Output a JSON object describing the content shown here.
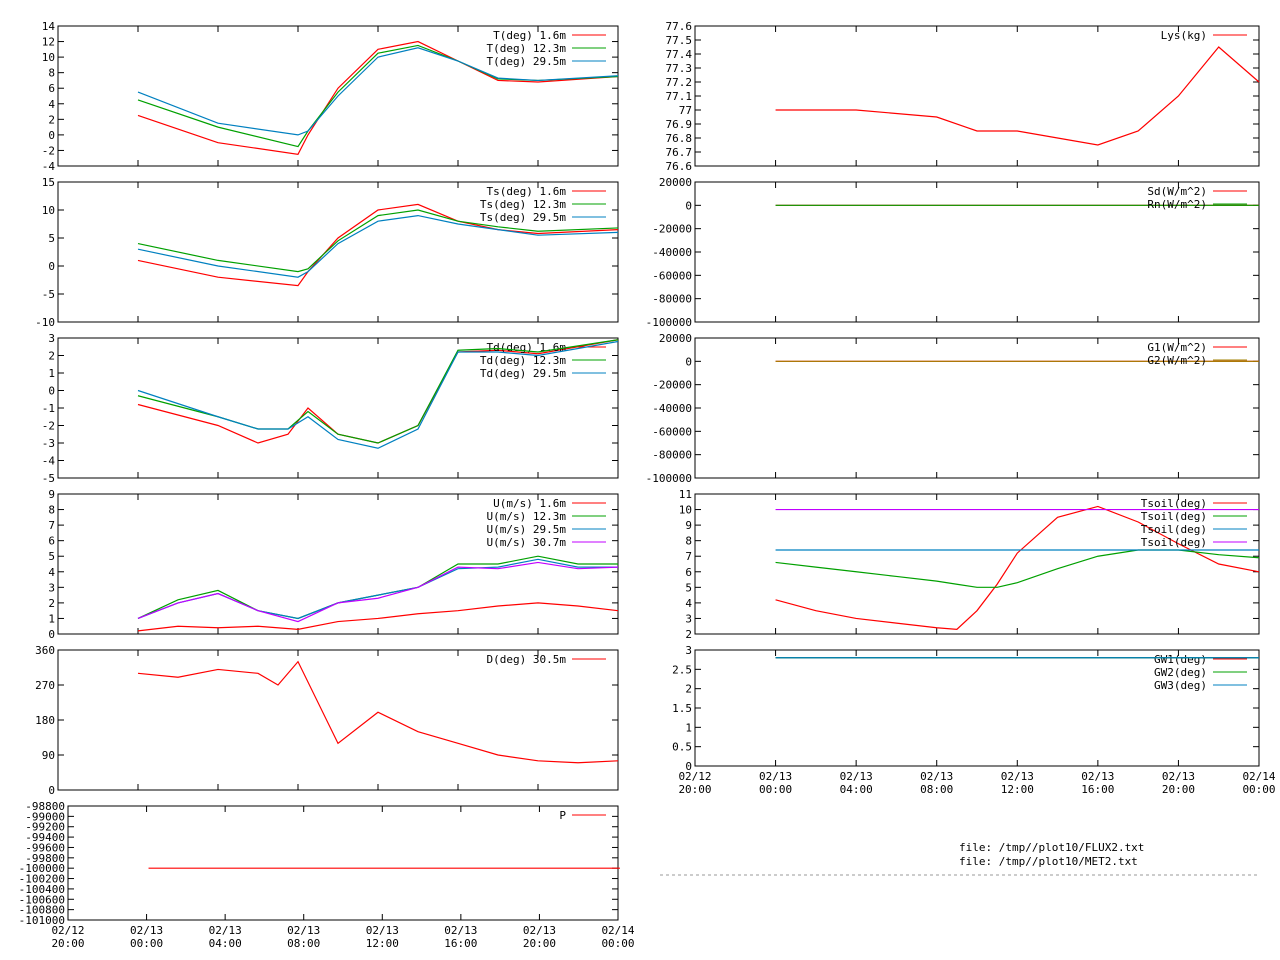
{
  "x_axis": {
    "tick_labels": [
      [
        "02/12",
        "20:00"
      ],
      [
        "02/13",
        "00:00"
      ],
      [
        "02/13",
        "04:00"
      ],
      [
        "02/13",
        "08:00"
      ],
      [
        "02/13",
        "12:00"
      ],
      [
        "02/13",
        "16:00"
      ],
      [
        "02/13",
        "20:00"
      ],
      [
        "02/14",
        "00:00"
      ]
    ]
  },
  "files": [
    "file: /tmp//plot10/FLUX2.txt",
    "file: /tmp//plot10/MET2.txt"
  ],
  "colors": {
    "red": "#ff0000",
    "green": "#00a000",
    "blue": "#0080c0",
    "purple": "#c000ff",
    "olive": "#a08000"
  },
  "chart_data": [
    {
      "type": "line",
      "id": "T",
      "ylim": [
        -4,
        14
      ],
      "yticks": [
        "-4",
        "-2",
        "0",
        "2",
        "4",
        "6",
        "8",
        "10",
        "12",
        "14"
      ],
      "x": [
        0,
        4,
        8,
        8.5,
        10,
        12,
        14,
        16,
        18,
        20,
        24
      ],
      "series": [
        {
          "name": "T(deg)  1.6m",
          "color": "#ff0000",
          "values": [
            2.5,
            -1,
            -2.5,
            0,
            6,
            11,
            12,
            9.5,
            7,
            6.8,
            7.5
          ]
        },
        {
          "name": "T(deg) 12.3m",
          "color": "#00a000",
          "values": [
            4.5,
            1,
            -1.5,
            0.5,
            5.5,
            10.5,
            11.5,
            9.5,
            7.2,
            7,
            7.5
          ]
        },
        {
          "name": "T(deg) 29.5m",
          "color": "#0080c0",
          "values": [
            5.5,
            1.5,
            0,
            0.5,
            5,
            10,
            11.2,
            9.5,
            7.3,
            7,
            7.6
          ]
        }
      ]
    },
    {
      "type": "line",
      "id": "Ts",
      "ylim": [
        -10,
        15
      ],
      "yticks": [
        "-10",
        "-5",
        "0",
        "5",
        "10",
        "15"
      ],
      "x": [
        0,
        4,
        8,
        8.5,
        10,
        12,
        14,
        16,
        18,
        20,
        24
      ],
      "series": [
        {
          "name": "Ts(deg)  1.6m",
          "color": "#ff0000",
          "values": [
            1,
            -2,
            -3.5,
            -1,
            5,
            10,
            11,
            8,
            6.5,
            5.8,
            6.5
          ]
        },
        {
          "name": "Ts(deg) 12.3m",
          "color": "#00a000",
          "values": [
            4,
            1,
            -1,
            -0.5,
            4.5,
            9,
            10,
            8,
            7,
            6.2,
            6.8
          ]
        },
        {
          "name": "Ts(deg) 29.5m",
          "color": "#0080c0",
          "values": [
            3,
            0,
            -2,
            -1,
            4,
            8,
            9,
            7.5,
            6.5,
            5.5,
            6
          ]
        }
      ]
    },
    {
      "type": "line",
      "id": "Td",
      "ylim": [
        -5,
        3
      ],
      "yticks": [
        "-5",
        "-4",
        "-3",
        "-2",
        "-1",
        "0",
        "1",
        "2",
        "3"
      ],
      "x": [
        0,
        4,
        6,
        7.5,
        8.5,
        10,
        12,
        14,
        16,
        18,
        20,
        24
      ],
      "series": [
        {
          "name": "Td(deg)  1.6m",
          "color": "#ff0000",
          "values": [
            -0.8,
            -2,
            -3,
            -2.5,
            -1,
            -2.5,
            -3,
            -2,
            2.2,
            2.3,
            2.1,
            2.9
          ]
        },
        {
          "name": "Td(deg) 12.3m",
          "color": "#00a000",
          "values": [
            -0.3,
            -1.5,
            -2.2,
            -2.2,
            -1.2,
            -2.5,
            -3,
            -2,
            2.3,
            2.4,
            2.2,
            2.9
          ]
        },
        {
          "name": "Td(deg) 29.5m",
          "color": "#0080c0",
          "values": [
            0,
            -1.5,
            -2.2,
            -2.2,
            -1.5,
            -2.8,
            -3.3,
            -2.2,
            2.2,
            2.2,
            2,
            2.8
          ]
        }
      ]
    },
    {
      "type": "line",
      "id": "U",
      "ylim": [
        0,
        9
      ],
      "yticks": [
        "0",
        "1",
        "2",
        "3",
        "4",
        "5",
        "6",
        "7",
        "8",
        "9"
      ],
      "x": [
        0,
        2,
        4,
        6,
        8,
        10,
        12,
        14,
        16,
        18,
        20,
        22,
        24
      ],
      "series": [
        {
          "name": "U(m/s)  1.6m",
          "color": "#ff0000",
          "values": [
            0.2,
            0.5,
            0.4,
            0.5,
            0.3,
            0.8,
            1,
            1.3,
            1.5,
            1.8,
            2,
            1.8,
            1.5
          ]
        },
        {
          "name": "U(m/s) 12.3m",
          "color": "#00a000",
          "values": [
            1,
            2.2,
            2.8,
            1.5,
            1,
            2,
            2.5,
            3,
            4.5,
            4.5,
            5,
            4.5,
            4.5
          ]
        },
        {
          "name": "U(m/s) 29.5m",
          "color": "#0080c0",
          "values": [
            1,
            2,
            2.6,
            1.5,
            1,
            2,
            2.5,
            3,
            4.2,
            4.3,
            4.8,
            4.3,
            4.3
          ]
        },
        {
          "name": "U(m/s) 30.7m",
          "color": "#c000ff",
          "values": [
            1,
            2,
            2.6,
            1.5,
            0.8,
            2,
            2.3,
            3,
            4.3,
            4.2,
            4.6,
            4.2,
            4.3
          ]
        }
      ]
    },
    {
      "type": "line",
      "id": "D",
      "ylim": [
        0,
        360
      ],
      "yticks": [
        "0",
        "90",
        "180",
        "270",
        "360"
      ],
      "x": [
        0,
        2,
        4,
        6,
        7,
        8,
        10,
        12,
        14,
        16,
        18,
        20,
        22,
        24
      ],
      "series": [
        {
          "name": "D(deg)  30.5m",
          "color": "#ff0000",
          "values": [
            300,
            290,
            310,
            300,
            270,
            330,
            120,
            200,
            150,
            120,
            90,
            75,
            70,
            75
          ]
        }
      ]
    },
    {
      "type": "line",
      "id": "P",
      "ylim": [
        -101000,
        -98800
      ],
      "yticks": [
        "-101000",
        "-100800",
        "-100600",
        "-100400",
        "-100200",
        "-100000",
        "-99800",
        "-99600",
        "-99400",
        "-99200",
        "-99000",
        "-98800"
      ],
      "x": [
        0,
        24
      ],
      "series": [
        {
          "name": "P",
          "color": "#ff0000",
          "values": [
            -100000,
            -100000
          ]
        }
      ]
    },
    {
      "type": "line",
      "id": "Lys",
      "ylim": [
        76.6,
        77.6
      ],
      "yticks": [
        "76.6",
        "76.7",
        "76.8",
        "76.9",
        "77",
        "77.1",
        "77.2",
        "77.3",
        "77.4",
        "77.5",
        "77.6"
      ],
      "x": [
        0,
        4,
        8,
        10,
        12,
        14,
        16,
        18,
        20,
        22,
        24
      ],
      "series": [
        {
          "name": "Lys(kg)",
          "color": "#ff0000",
          "values": [
            77,
            77,
            76.95,
            76.85,
            76.85,
            76.8,
            76.75,
            76.85,
            77.1,
            77.45,
            77.2
          ]
        }
      ]
    },
    {
      "type": "line",
      "id": "Rad",
      "ylim": [
        -100000,
        20000
      ],
      "yticks": [
        "-100000",
        "-80000",
        "-60000",
        "-40000",
        "-20000",
        "0",
        "20000"
      ],
      "x": [
        0,
        24
      ],
      "series": [
        {
          "name": "Sd(W/m^2)",
          "color": "#ff0000",
          "values": [
            0,
            0
          ]
        },
        {
          "name": "Rn(W/m^2)",
          "color": "#00a000",
          "values": [
            0,
            0
          ]
        }
      ]
    },
    {
      "type": "line",
      "id": "G",
      "ylim": [
        -100000,
        20000
      ],
      "yticks": [
        "-100000",
        "-80000",
        "-60000",
        "-40000",
        "-20000",
        "0",
        "20000"
      ],
      "x": [
        0,
        24
      ],
      "series": [
        {
          "name": "G1(W/m^2)",
          "color": "#ff0000",
          "values": [
            0,
            0
          ]
        },
        {
          "name": "G2(W/m^2)",
          "color": "#a08000",
          "values": [
            0,
            0
          ]
        }
      ]
    },
    {
      "type": "line",
      "id": "Tsoil",
      "ylim": [
        2,
        11
      ],
      "yticks": [
        "2",
        "3",
        "4",
        "5",
        "6",
        "7",
        "8",
        "9",
        "10",
        "11"
      ],
      "x": [
        0,
        2,
        4,
        6,
        8,
        9,
        10,
        11,
        12,
        14,
        16,
        18,
        20,
        22,
        24
      ],
      "series": [
        {
          "name": "Tsoil(deg)",
          "color": "#ff0000",
          "values": [
            4.2,
            3.5,
            3,
            2.7,
            2.4,
            2.3,
            3.5,
            5.2,
            7.2,
            9.5,
            10.2,
            9.2,
            7.8,
            6.5,
            6
          ]
        },
        {
          "name": "Tsoil(deg)",
          "color": "#00a000",
          "values": [
            6.6,
            6.3,
            6,
            5.7,
            5.4,
            5.2,
            5,
            5,
            5.3,
            6.2,
            7,
            7.4,
            7.4,
            7.1,
            6.9
          ]
        },
        {
          "name": "Tsoil(deg)",
          "color": "#0080c0",
          "values": [
            7.4,
            7.4,
            7.4,
            7.4,
            7.4,
            7.4,
            7.4,
            7.4,
            7.4,
            7.4,
            7.4,
            7.4,
            7.4,
            7.4,
            7.4
          ]
        },
        {
          "name": "Tsoil(deg)",
          "color": "#c000ff",
          "values": [
            10,
            10,
            10,
            10,
            10,
            10,
            10,
            10,
            10,
            10,
            10,
            10,
            10,
            10,
            10
          ]
        }
      ]
    },
    {
      "type": "line",
      "id": "GW",
      "ylim": [
        0,
        3
      ],
      "yticks": [
        "0",
        "0.5",
        "1",
        "1.5",
        "2",
        "2.5",
        "3"
      ],
      "x": [
        0,
        24
      ],
      "series": [
        {
          "name": "GW1(deg)",
          "color": "#ff0000",
          "values": [
            2.8,
            2.8
          ]
        },
        {
          "name": "GW2(deg)",
          "color": "#00a000",
          "values": [
            2.8,
            2.8
          ]
        },
        {
          "name": "GW3(deg)",
          "color": "#0080c0",
          "values": [
            2.8,
            2.8
          ]
        }
      ]
    }
  ]
}
